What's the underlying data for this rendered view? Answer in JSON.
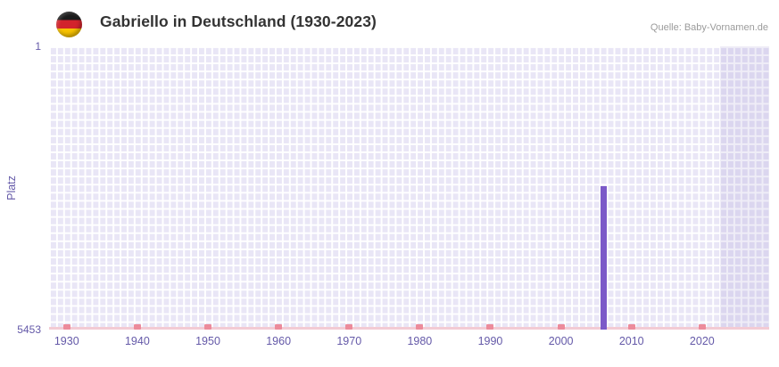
{
  "header": {
    "title": "Gabriello in Deutschland (1930-2023)",
    "source": "Quelle: Baby-Vornamen.de",
    "flag_icon": "german-flag-round"
  },
  "chart_data": {
    "type": "bar",
    "title": "Gabriello in Deutschland (1930-2023)",
    "xlabel": "",
    "ylabel": "Platz",
    "y_axis": {
      "tick_top": "1",
      "tick_bottom": "5453",
      "min": 1,
      "max": 5453,
      "inverted": true
    },
    "x_axis": {
      "data_range": [
        1930,
        2023
      ],
      "render_range": [
        1927.5,
        2029.5
      ],
      "ticks": [
        "1930",
        "1940",
        "1950",
        "1960",
        "1970",
        "1980",
        "1990",
        "2000",
        "2010",
        "2020"
      ],
      "decade_marks": [
        1930,
        1940,
        1950,
        1960,
        1970,
        1980,
        1990,
        2000,
        2010,
        2020,
        2030
      ]
    },
    "series": [
      {
        "name": "Platz",
        "color": "#7b59c8",
        "points": [
          {
            "year": 2006,
            "rank": 2700
          }
        ]
      }
    ],
    "shaded_region": {
      "start_year": 2023,
      "end_year": 2030,
      "color": "rgba(98,78,180,0.10)"
    },
    "grid": true,
    "legend": false,
    "colors": {
      "plot_background": "#e9e6f6",
      "grid_lines": "#ffffff",
      "axis_line": "#f3cbd4",
      "decade_mark": "#ec8b9b",
      "tick_text": "#6459a8",
      "title_text": "#333333",
      "source_text": "#9b9b9b"
    }
  }
}
